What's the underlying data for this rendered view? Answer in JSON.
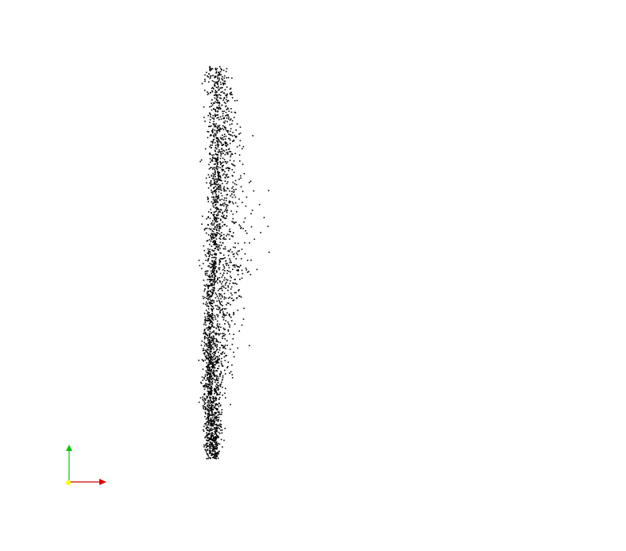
{
  "viewer": {
    "background_color": "#ffffff",
    "point_color": "#000000",
    "point_count": 2600
  },
  "axes_triad": {
    "x_axis_color": "#d40000",
    "y_axis_color": "#00c800",
    "origin_color": "#ffff00"
  }
}
